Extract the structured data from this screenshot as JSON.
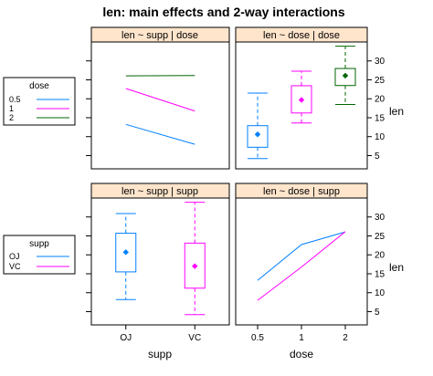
{
  "chart_data": {
    "title": "len: main effects and 2-way interactions",
    "right_axis": {
      "label": "len",
      "ticks": [
        5,
        10,
        15,
        20,
        25,
        30
      ],
      "ylim": [
        1.5,
        35
      ]
    },
    "panels": [
      {
        "id": "tl",
        "type": "line",
        "strip": "len ~ supp | dose",
        "categories": [
          "OJ",
          "VC"
        ],
        "series": [
          {
            "name": "0.5",
            "color": "#0080ff",
            "values": [
              13.23,
              7.98
            ]
          },
          {
            "name": "1",
            "color": "#ff00ff",
            "values": [
              22.7,
              16.77
            ]
          },
          {
            "name": "2",
            "color": "#006400",
            "values": [
              26.06,
              26.14
            ]
          }
        ]
      },
      {
        "id": "tr",
        "type": "box",
        "strip": "len ~ dose | dose",
        "categories": [
          "0.5",
          "1",
          "2"
        ],
        "boxes": [
          {
            "color": "#0080ff",
            "min": 4.2,
            "q1": 7.2,
            "median": 9.85,
            "mean": 10.6,
            "q3": 12.9,
            "max": 21.5
          },
          {
            "color": "#ff00ff",
            "min": 13.6,
            "q1": 16.25,
            "median": 19.25,
            "mean": 19.7,
            "q3": 23.45,
            "max": 27.3
          },
          {
            "color": "#006400",
            "min": 18.5,
            "q1": 23.5,
            "median": 25.95,
            "mean": 26.1,
            "q3": 28.0,
            "max": 33.9
          }
        ]
      },
      {
        "id": "bl",
        "type": "box",
        "strip": "len ~ supp | supp",
        "categories": [
          "OJ",
          "VC"
        ],
        "boxes": [
          {
            "color": "#0080ff",
            "min": 8.2,
            "q1": 15.5,
            "median": 22.7,
            "mean": 20.7,
            "q3": 25.7,
            "max": 30.9
          },
          {
            "color": "#ff00ff",
            "min": 4.2,
            "q1": 11.2,
            "median": 16.5,
            "mean": 17.0,
            "q3": 23.1,
            "max": 33.9
          }
        ]
      },
      {
        "id": "br",
        "type": "line",
        "strip": "len ~ dose | supp",
        "categories": [
          "0.5",
          "1",
          "2"
        ],
        "series": [
          {
            "name": "OJ",
            "color": "#0080ff",
            "values": [
              13.23,
              22.7,
              26.06
            ]
          },
          {
            "name": "VC",
            "color": "#ff00ff",
            "values": [
              7.98,
              16.77,
              26.14
            ]
          }
        ]
      }
    ],
    "x_axes": [
      {
        "label": "supp",
        "ticks": [
          "OJ",
          "VC"
        ]
      },
      {
        "label": "dose",
        "ticks": [
          "0.5",
          "1",
          "2"
        ]
      }
    ],
    "legends": [
      {
        "title": "dose",
        "entries": [
          {
            "label": "0.5",
            "color": "#0080ff"
          },
          {
            "label": "1",
            "color": "#ff00ff"
          },
          {
            "label": "2",
            "color": "#006400"
          }
        ]
      },
      {
        "title": "supp",
        "entries": [
          {
            "label": "OJ",
            "color": "#0080ff"
          },
          {
            "label": "VC",
            "color": "#ff00ff"
          }
        ]
      }
    ]
  }
}
